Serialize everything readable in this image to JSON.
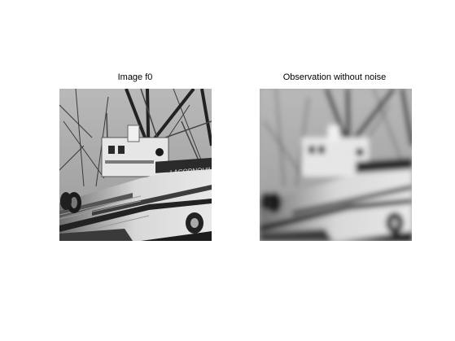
{
  "figure": {
    "panels": [
      {
        "title": "Image f0",
        "content": "grayscale photograph of fishing boat LA CORNOUILLE in harbor, sharp"
      },
      {
        "title": "Observation without noise",
        "content": "same boat photograph, heavily blurred"
      }
    ]
  },
  "colors": {
    "background": "#ffffff",
    "text": "#000000"
  }
}
